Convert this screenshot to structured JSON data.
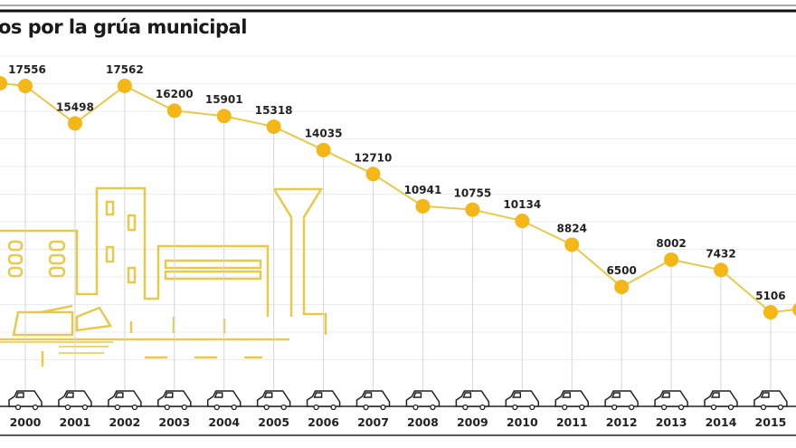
{
  "chart_data": {
    "type": "line",
    "title": "os por la grúa municipal",
    "xlabel": "",
    "ylabel": "",
    "categories": [
      "2000",
      "2001",
      "2002",
      "2003",
      "2004",
      "2005",
      "2006",
      "2007",
      "2008",
      "2009",
      "2010",
      "2011",
      "2012",
      "2013",
      "2014",
      "2015"
    ],
    "values": [
      17556,
      15498,
      17562,
      16200,
      15901,
      15318,
      14035,
      12710,
      10941,
      10755,
      10134,
      8824,
      6500,
      8002,
      7432,
      5106
    ],
    "grid": true,
    "legend": "none",
    "colors": {
      "line": "#e8c94a",
      "marker": "#f5b617",
      "illustration": "#e8c94a",
      "text": "#222222"
    }
  }
}
